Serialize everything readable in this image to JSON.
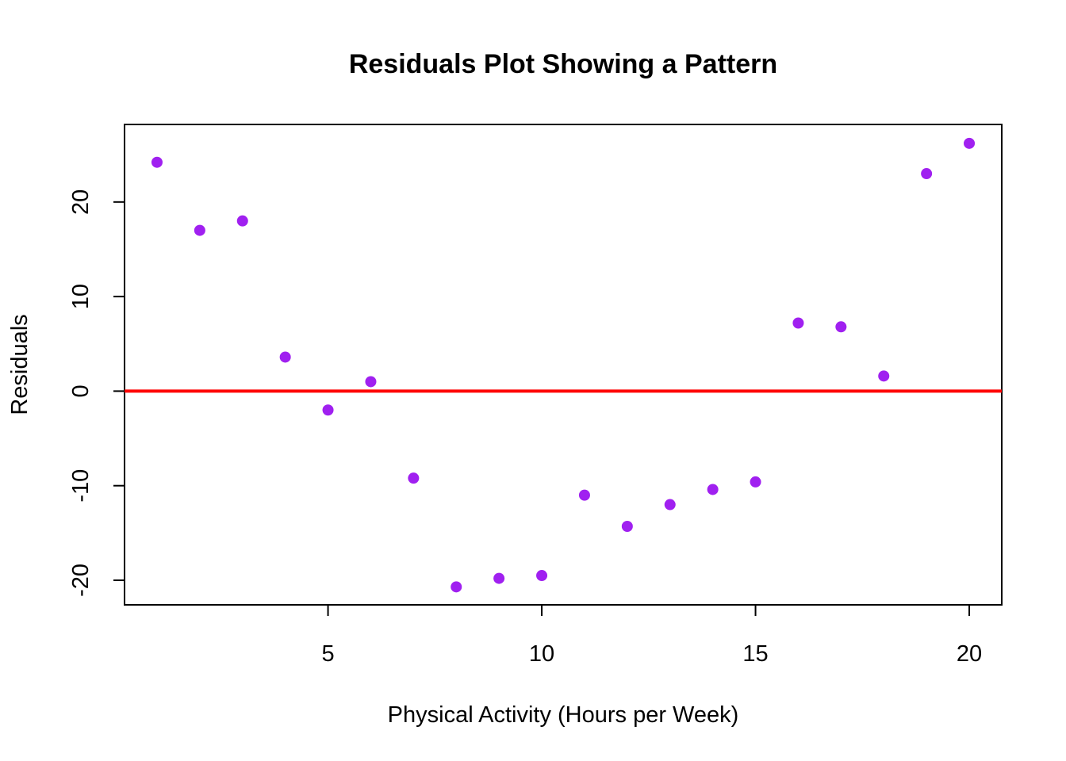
{
  "chart_data": {
    "type": "scatter",
    "title": "Residuals Plot Showing a Pattern",
    "xlabel": "Physical Activity (Hours per Week)",
    "ylabel": "Residuals",
    "xlim": [
      0.24,
      20.76
    ],
    "ylim": [
      -22.6,
      28.2
    ],
    "x_ticks": [
      5,
      10,
      15,
      20
    ],
    "y_ticks": [
      -20,
      -10,
      0,
      10,
      20
    ],
    "grid": false,
    "legend": "none",
    "reference_line": {
      "y": 0,
      "color": "#ff0000"
    },
    "point_color": "#a020f0",
    "points": [
      {
        "x": 1,
        "y": 24.2
      },
      {
        "x": 2,
        "y": 17.0
      },
      {
        "x": 3,
        "y": 18.0
      },
      {
        "x": 4,
        "y": 3.6
      },
      {
        "x": 5,
        "y": -2.0
      },
      {
        "x": 6,
        "y": 1.0
      },
      {
        "x": 7,
        "y": -9.2
      },
      {
        "x": 8,
        "y": -20.7
      },
      {
        "x": 9,
        "y": -19.8
      },
      {
        "x": 10,
        "y": -19.5
      },
      {
        "x": 11,
        "y": -11.0
      },
      {
        "x": 12,
        "y": -14.3
      },
      {
        "x": 13,
        "y": -12.0
      },
      {
        "x": 14,
        "y": -10.4
      },
      {
        "x": 15,
        "y": -9.6
      },
      {
        "x": 16,
        "y": 7.2
      },
      {
        "x": 17,
        "y": 6.8
      },
      {
        "x": 18,
        "y": 1.6
      },
      {
        "x": 19,
        "y": 23.0
      },
      {
        "x": 20,
        "y": 26.2
      }
    ]
  }
}
